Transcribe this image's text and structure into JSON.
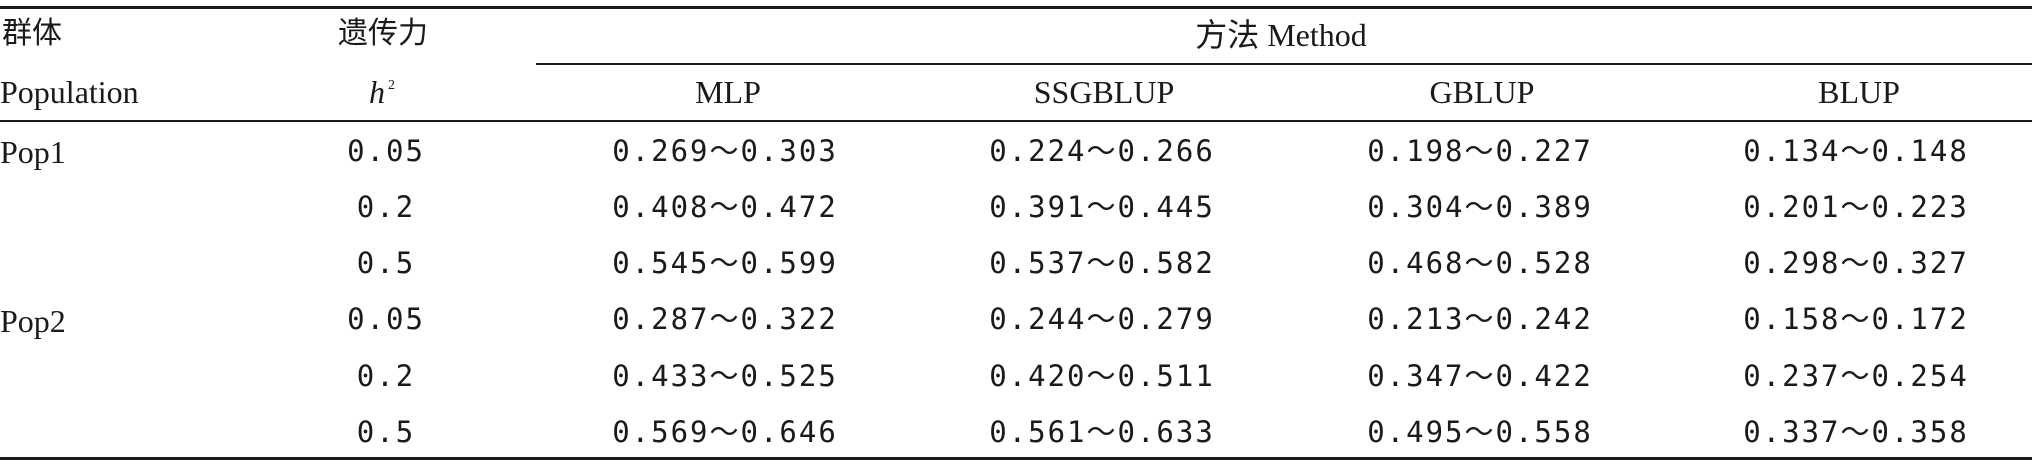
{
  "table": {
    "header": {
      "population_cn": "群体",
      "population_en": "Population",
      "heritability_cn": "遗传力",
      "heritability_symbol": "h",
      "heritability_exp": "2",
      "method_group": "方法 Method",
      "methods": [
        "MLP",
        "SSGBLUP",
        "GBLUP",
        "BLUP"
      ]
    },
    "rows": [
      {
        "population": "Pop1",
        "h2": "0.05",
        "values": [
          "0.269～0.303",
          "0.224～0.266",
          "0.198～0.227",
          "0.134～0.148"
        ]
      },
      {
        "population": "",
        "h2": "0.2",
        "values": [
          "0.408～0.472",
          "0.391～0.445",
          "0.304～0.389",
          "0.201～0.223"
        ]
      },
      {
        "population": "",
        "h2": "0.5",
        "values": [
          "0.545～0.599",
          "0.537～0.582",
          "0.468～0.528",
          "0.298～0.327"
        ]
      },
      {
        "population": "Pop2",
        "h2": "0.05",
        "values": [
          "0.287～0.322",
          "0.244～0.279",
          "0.213～0.242",
          "0.158～0.172"
        ]
      },
      {
        "population": "",
        "h2": "0.2",
        "values": [
          "0.433～0.525",
          "0.420～0.511",
          "0.347～0.422",
          "0.237～0.254"
        ]
      },
      {
        "population": "",
        "h2": "0.5",
        "values": [
          "0.569～0.646",
          "0.561～0.633",
          "0.495～0.558",
          "0.337～0.358"
        ]
      }
    ]
  }
}
